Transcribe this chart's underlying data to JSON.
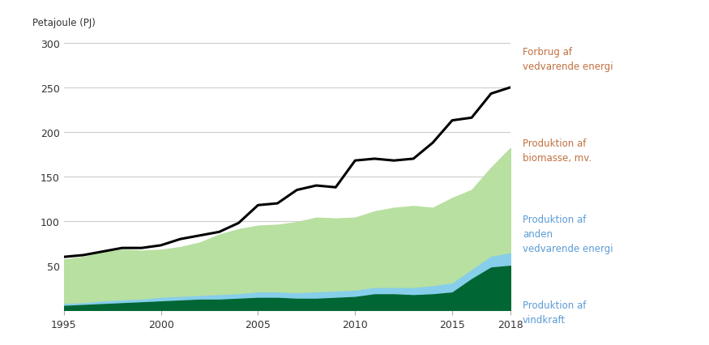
{
  "years": [
    1995,
    1996,
    1997,
    1998,
    1999,
    2000,
    2001,
    2002,
    2003,
    2004,
    2005,
    2006,
    2007,
    2008,
    2009,
    2010,
    2011,
    2012,
    2013,
    2014,
    2015,
    2016,
    2017,
    2018
  ],
  "vindkraft": [
    5,
    6,
    7,
    8,
    9,
    10,
    11,
    12,
    12,
    13,
    14,
    14,
    13,
    13,
    14,
    15,
    18,
    18,
    17,
    18,
    20,
    35,
    48,
    50
  ],
  "anden_vedvarende": [
    2,
    2,
    3,
    3,
    3,
    4,
    4,
    4,
    5,
    5,
    6,
    6,
    6,
    7,
    7,
    7,
    7,
    7,
    8,
    9,
    10,
    10,
    12,
    14
  ],
  "biomasse": [
    50,
    52,
    55,
    57,
    55,
    54,
    56,
    60,
    68,
    73,
    75,
    76,
    80,
    84,
    82,
    82,
    86,
    90,
    92,
    88,
    96,
    90,
    100,
    118
  ],
  "forbrug_vedvarende": [
    60,
    62,
    66,
    70,
    70,
    73,
    80,
    84,
    88,
    98,
    118,
    120,
    135,
    140,
    138,
    168,
    170,
    168,
    170,
    188,
    213,
    216,
    243,
    250
  ],
  "color_vindkraft": "#006633",
  "color_anden": "#87CEEB",
  "color_biomasse": "#b8e0a0",
  "color_forbrug": "#000000",
  "ylabel": "Petajoule (PJ)",
  "ylim": [
    0,
    310
  ],
  "yticks": [
    0,
    50,
    100,
    150,
    200,
    250,
    300
  ],
  "legend_forbrug": "Forbrug af\nvedvarende energi",
  "legend_biomasse": "Produktion af\nbiomasse, mv.",
  "legend_anden": "Produktion af\nanden\nvedvarende energi",
  "legend_vindkraft": "Produktion af\nvindkraft",
  "legend_color_forbrug": "#C07040",
  "legend_color_biomasse": "#C07040",
  "legend_color_anden": "#5B9BD5",
  "legend_color_vindkraft": "#5B9BD5",
  "background_color": "#ffffff",
  "grid_color": "#cccccc"
}
